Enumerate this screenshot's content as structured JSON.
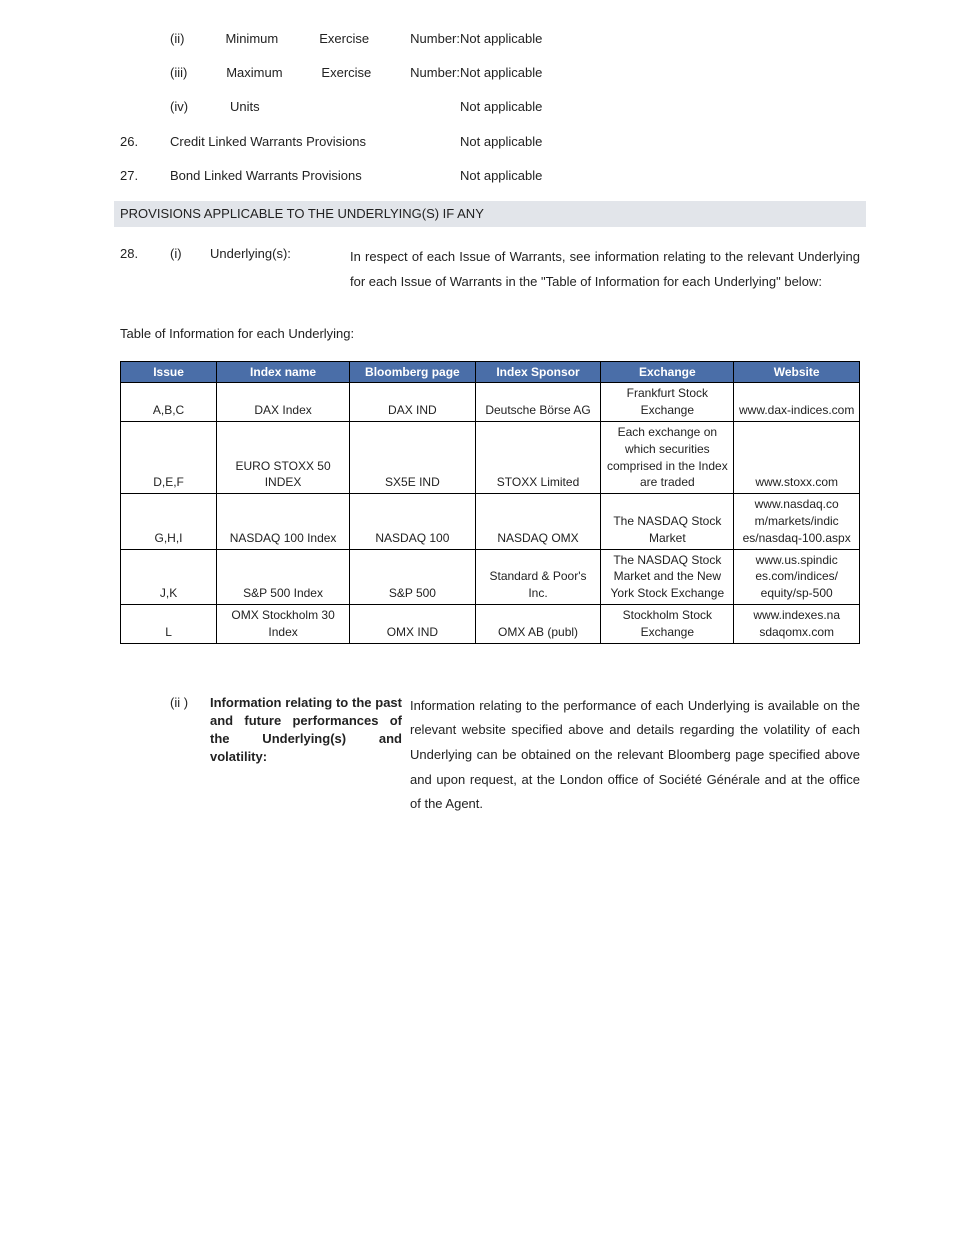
{
  "items": {
    "ii_label": "(ii) Minimum Exercise Number:",
    "ii_val": "Not applicable",
    "iii_label": "(iii) Maximum Exercise Number:",
    "iii_val": "Not applicable",
    "iv_sub": "(iv)",
    "iv_label": "Units",
    "iv_val": "Not applicable",
    "r26_num": "26.",
    "r26_label": "Credit Linked Warrants Provisions",
    "r26_val": "Not applicable",
    "r27_num": "27.",
    "r27_label": "Bond Linked Warrants Provisions",
    "r27_val": "Not applicable",
    "band": "PROVISIONS APPLICABLE TO THE UNDERLYING(S) IF ANY",
    "r28_num": "28.",
    "r28_sub": "(i)",
    "r28_label": "Underlying(s):",
    "r28_val": "In respect of each Issue of Warrants, see information relating to the relevant Underlying for each Issue of Warrants in the \"Table of Information for each Underlying\" below:",
    "table_title": "Table of Information for each Underlying:",
    "info_sub": "(ii )",
    "info_label": "Information relating to the past and future performances of the Underlying(s) and volatility:",
    "info_val": "Information relating to the performance of each Underlying is available on the relevant website specified above and details regarding the volatility of each Underlying can be obtained on the relevant Bloomberg page specified above and upon request, at the London office of Société Générale and at the office of the Agent."
  },
  "table": {
    "headers": [
      "Issue",
      "Index name",
      "Bloomberg page",
      "Index Sponsor",
      "Exchange",
      "Website"
    ],
    "rows": [
      [
        "A,B,C",
        "DAX Index",
        "DAX IND",
        "Deutsche Börse AG",
        "Frankfurt Stock Exchange",
        "www.dax-indices.com"
      ],
      [
        "D,E,F",
        "EURO STOXX 50 INDEX",
        "SX5E IND",
        "STOXX Limited",
        "Each exchange on which securities comprised in the Index are traded",
        "www.stoxx.com"
      ],
      [
        "G,H,I",
        "NASDAQ 100 Index",
        "NASDAQ 100",
        "NASDAQ OMX",
        "The NASDAQ Stock Market",
        "www.nasdaq.co m/markets/indic es/nasdaq-100.aspx"
      ],
      [
        "J,K",
        "S&P 500 Index",
        "S&P 500",
        "Standard & Poor's Inc.",
        "The NASDAQ Stock Market and the New York Stock Exchange",
        "www.us.spindic es.com/indices/ equity/sp-500"
      ],
      [
        "L",
        "OMX Stockholm 30 Index",
        "OMX IND",
        "OMX AB (publ)",
        "Stockholm Stock Exchange",
        "www.indexes.na sdaqomx.com"
      ]
    ],
    "col_widths": [
      "13%",
      "18%",
      "17%",
      "17%",
      "18%",
      "17%"
    ],
    "header_bg": "#4a6ea8",
    "header_fg": "#ffffff",
    "border_color": "#000000"
  }
}
